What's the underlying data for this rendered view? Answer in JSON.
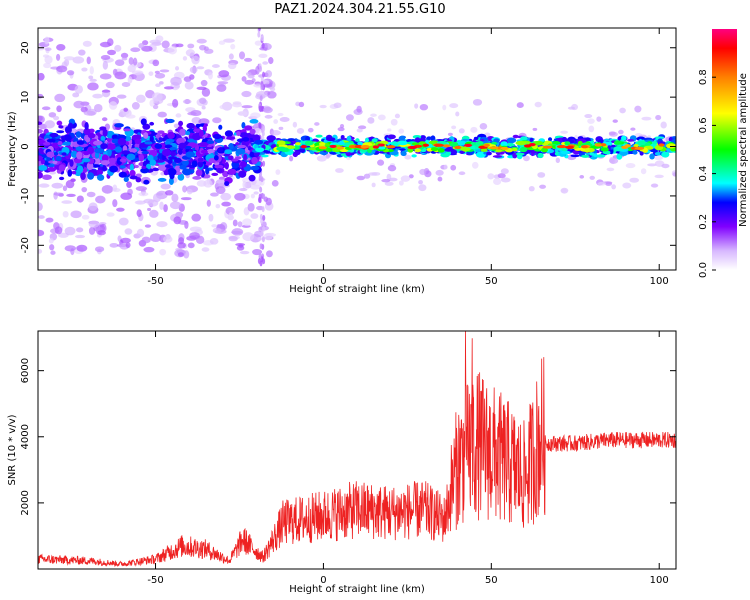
{
  "title": "PAZ1.2024.304.21.55.G10",
  "chart_data": [
    {
      "type": "heatmap",
      "xlabel": "Height of straight line (km)",
      "ylabel": "Frequency (Hz)",
      "xlim": [
        -85,
        105
      ],
      "ylim": [
        -25,
        24
      ],
      "xticks": [
        -50,
        0,
        50,
        100
      ],
      "yticks": [
        -20,
        -10,
        0,
        10,
        20
      ],
      "colorbar": {
        "label": "Normalized spectral amplitude",
        "range": [
          0,
          1
        ],
        "ticks": [
          "0.0",
          "0.2",
          "0.4",
          "0.6",
          "0.8"
        ]
      },
      "description_of_signal": [
        {
          "x_range": [
            -85,
            -20
          ],
          "freq_center": -1,
          "freq_spread": 5,
          "amplitude_range": [
            0.05,
            0.35
          ]
        },
        {
          "x_range": [
            -20,
            105
          ],
          "freq_center": 0,
          "freq_spread": 2,
          "amplitude_range": [
            0.3,
            1.0
          ]
        }
      ]
    },
    {
      "type": "line",
      "xlabel": "Height of straight line (km)",
      "ylabel": "SNR (10 * v/v)",
      "xlim": [
        -85,
        105
      ],
      "ylim": [
        0,
        7200
      ],
      "xticks": [
        -50,
        0,
        50,
        100
      ],
      "yticks": [
        2000,
        4000,
        6000
      ],
      "color": "#ee2222",
      "envelope": [
        {
          "x": -85,
          "y": 300
        },
        {
          "x": -70,
          "y": 250
        },
        {
          "x": -60,
          "y": 150
        },
        {
          "x": -50,
          "y": 300
        },
        {
          "x": -42,
          "y": 700
        },
        {
          "x": -35,
          "y": 600
        },
        {
          "x": -28,
          "y": 250
        },
        {
          "x": -24,
          "y": 900
        },
        {
          "x": -18,
          "y": 350
        },
        {
          "x": -12,
          "y": 1400
        },
        {
          "x": 0,
          "y": 1600
        },
        {
          "x": 10,
          "y": 1800
        },
        {
          "x": 20,
          "y": 1700
        },
        {
          "x": 30,
          "y": 1800
        },
        {
          "x": 36,
          "y": 1500
        },
        {
          "x": 40,
          "y": 3000
        },
        {
          "x": 45,
          "y": 3600
        },
        {
          "x": 50,
          "y": 3300
        },
        {
          "x": 55,
          "y": 3000
        },
        {
          "x": 60,
          "y": 2600
        },
        {
          "x": 65,
          "y": 3800
        },
        {
          "x": 75,
          "y": 3800
        },
        {
          "x": 85,
          "y": 3900
        },
        {
          "x": 95,
          "y": 3900
        },
        {
          "x": 105,
          "y": 3900
        }
      ]
    }
  ]
}
